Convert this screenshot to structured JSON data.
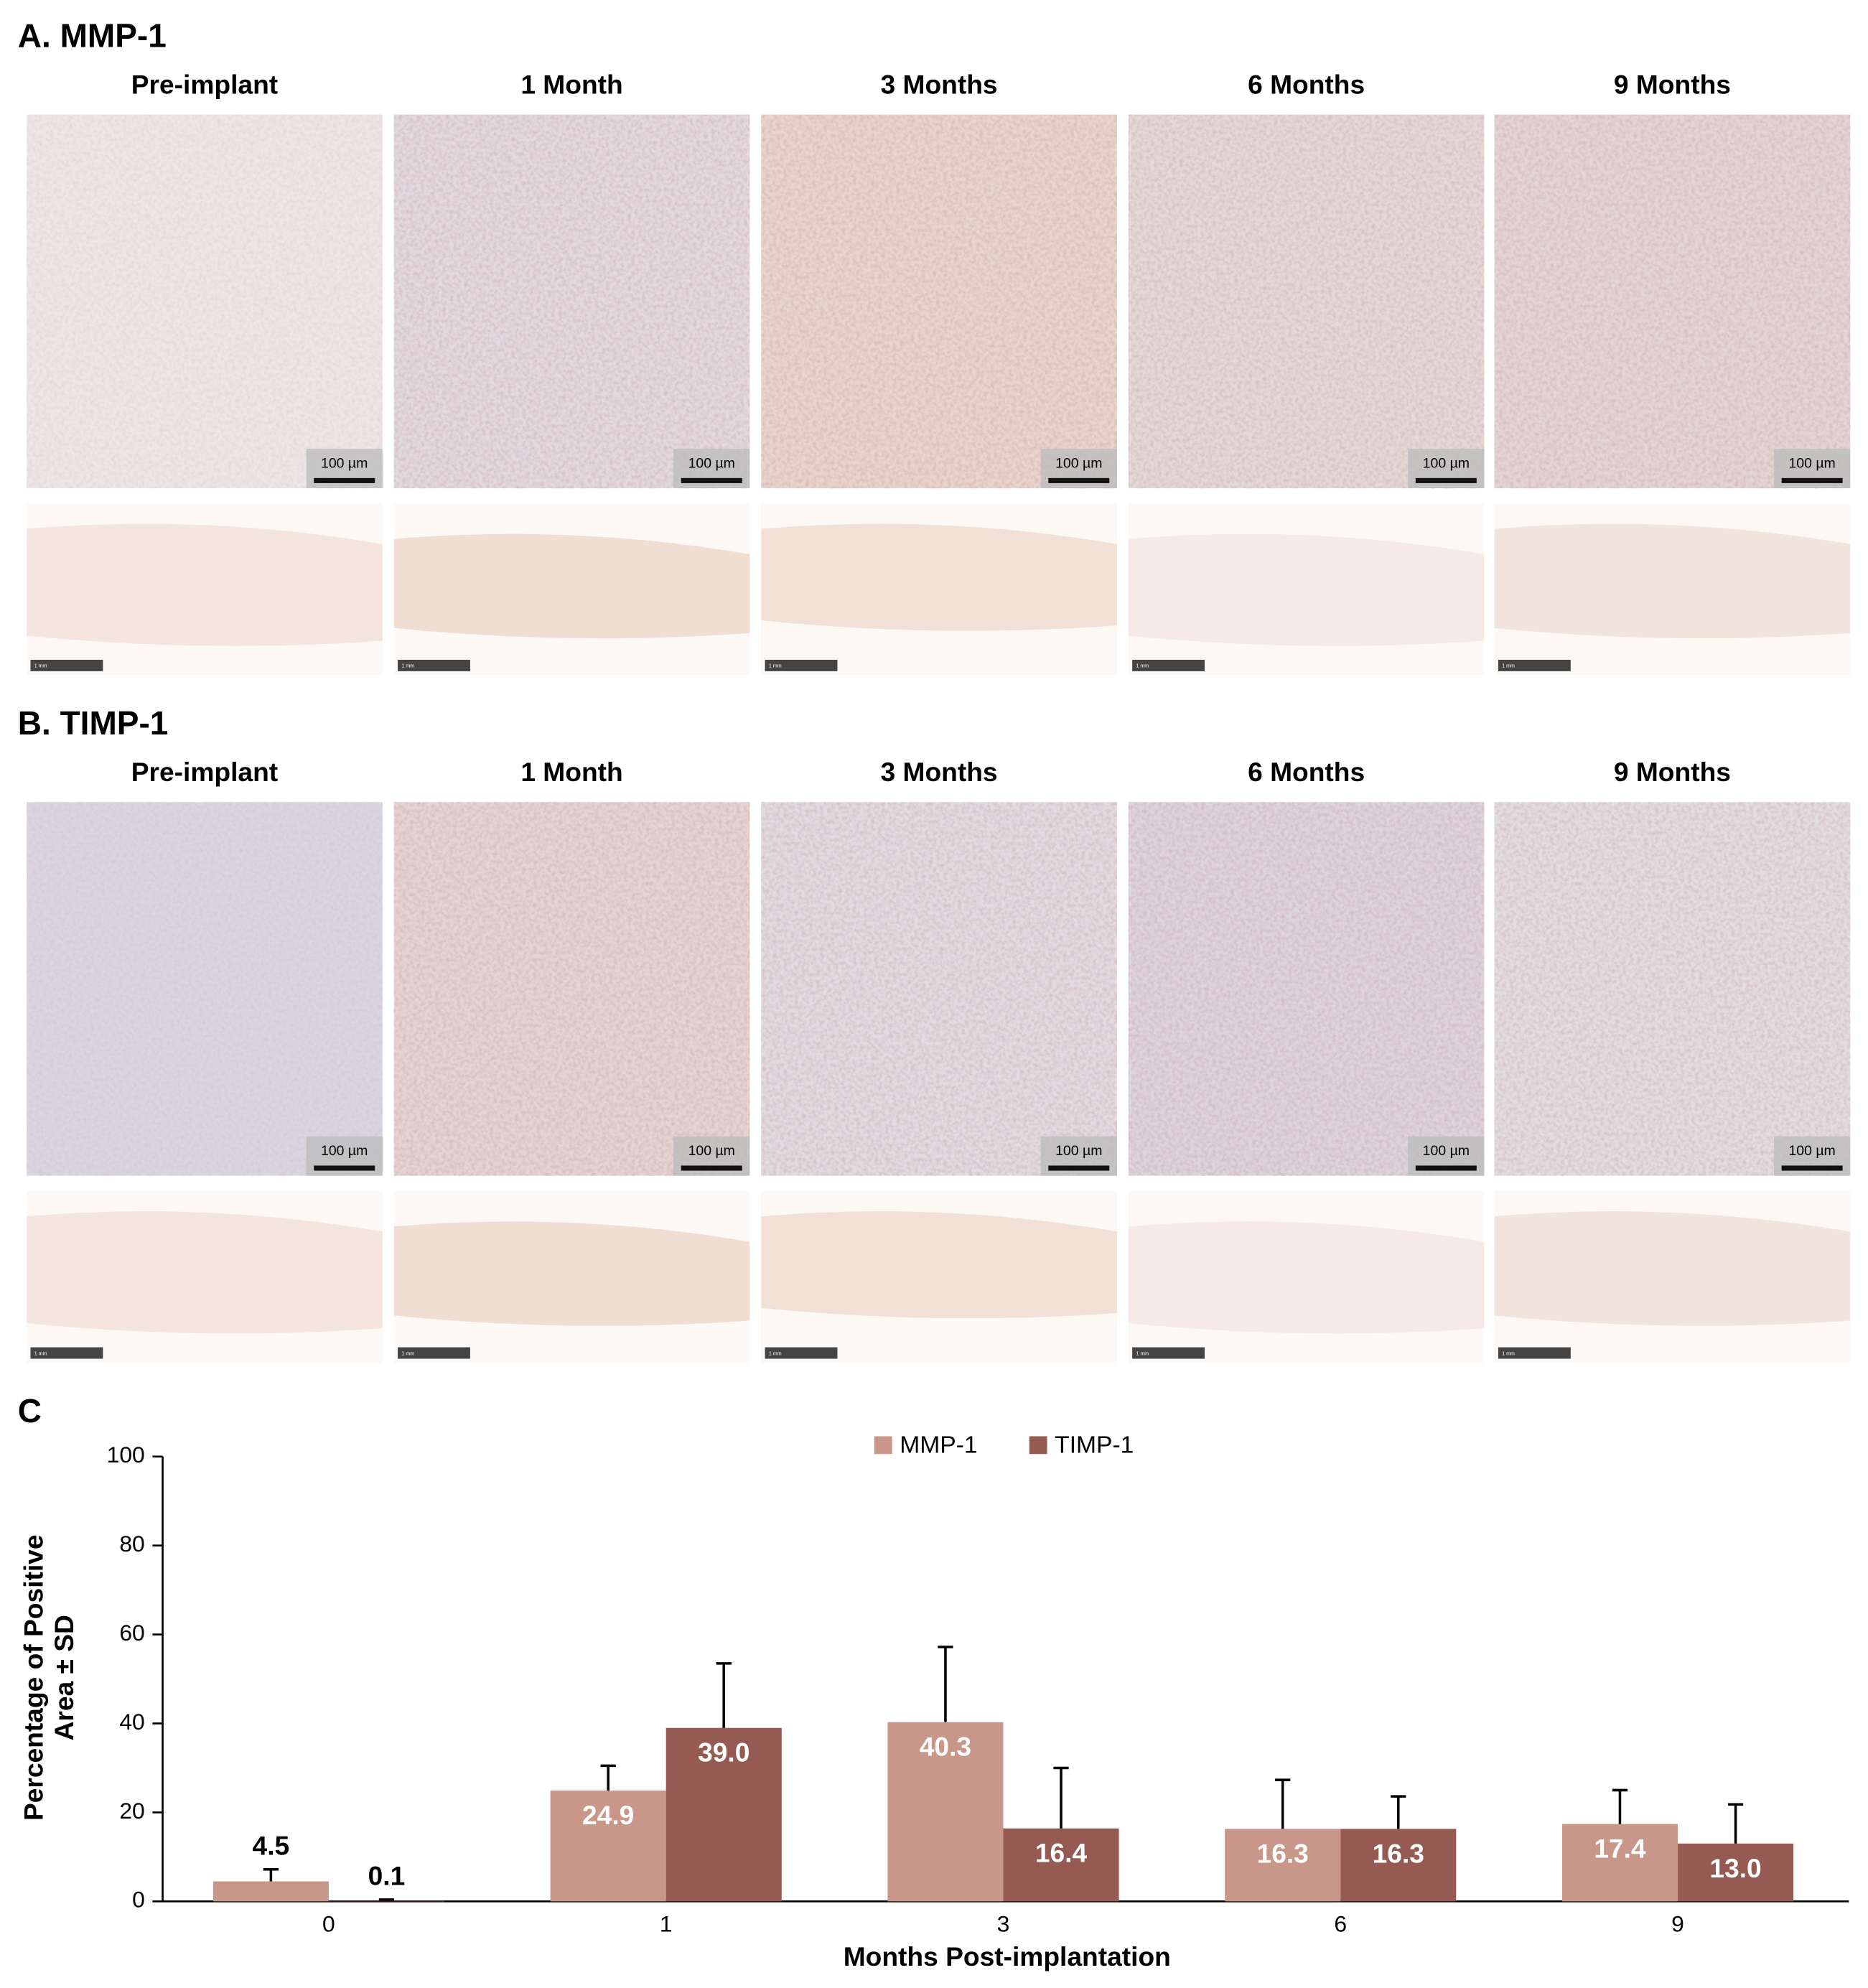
{
  "panels": [
    {
      "title": "A. MMP-1",
      "columns": [
        "Pre-implant",
        "1 Month",
        "3 Months",
        "6 Months",
        "9 Months"
      ],
      "scale_bar_zoom": "100 µm",
      "scale_bar_overview": "1 mm"
    },
    {
      "title": "B. TIMP-1",
      "columns": [
        "Pre-implant",
        "1 Month",
        "3 Months",
        "6 Months",
        "9 Months"
      ],
      "scale_bar_zoom": "100 µm",
      "scale_bar_overview": "1 mm"
    }
  ],
  "chart_data": {
    "type": "bar",
    "panel_label": "C",
    "x_label": "Months Post-implantation",
    "y_label": [
      "Percentage of Positive",
      "Area ± SD"
    ],
    "categories": [
      "0",
      "1",
      "3",
      "6",
      "9"
    ],
    "series": [
      {
        "name": "MMP-1",
        "color": "#c9978a",
        "values": [
          4.5,
          24.9,
          40.3,
          16.3,
          17.4
        ],
        "value_labels": [
          "4.5",
          "24.9",
          "40.3",
          "16.3",
          "17.4"
        ],
        "errors": [
          2.7,
          5.6,
          16.9,
          11.0,
          7.6
        ]
      },
      {
        "name": "TIMP-1",
        "color": "#955a52",
        "values": [
          0.1,
          39.0,
          16.4,
          16.3,
          13.0
        ],
        "value_labels": [
          "0.1",
          "39.0",
          "16.4",
          "16.3",
          "13.0"
        ],
        "errors": [
          0.3,
          14.5,
          13.6,
          7.3,
          8.8
        ]
      }
    ],
    "ylim": [
      0,
      100
    ],
    "yticks": [
      0,
      20,
      40,
      60,
      80,
      100
    ],
    "grid": false,
    "legend": "top"
  }
}
